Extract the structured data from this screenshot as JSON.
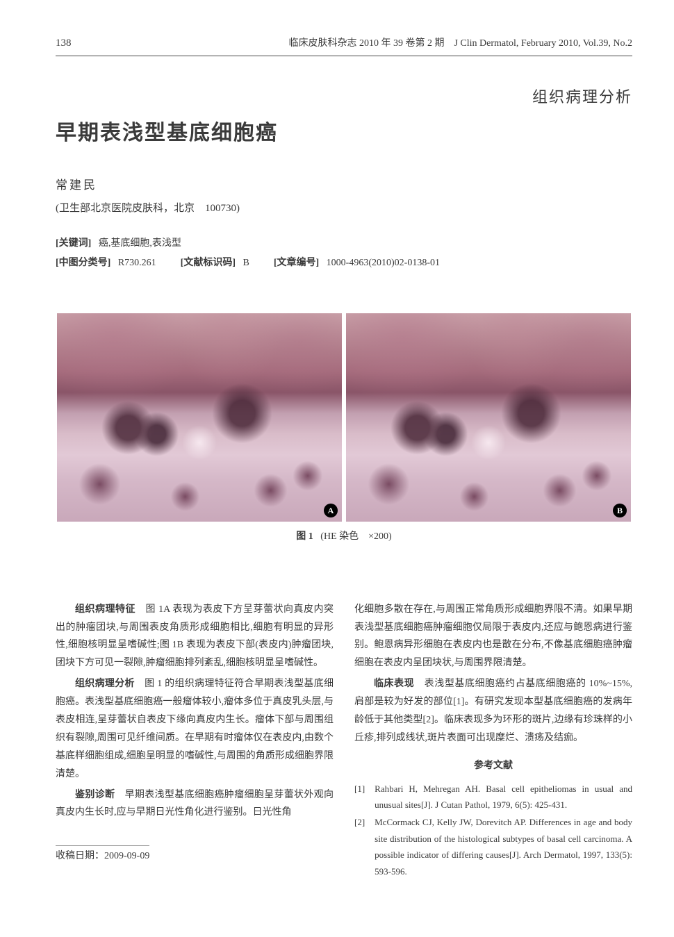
{
  "header": {
    "page_number": "138",
    "journal_cn": "临床皮肤科杂志 2010 年 39 卷第 2 期",
    "journal_en": "J Clin Dermatol, February 2010, Vol.39, No.2"
  },
  "section_label": "组织病理分析",
  "title": "早期表浅型基底细胞癌",
  "author": "常建民",
  "affiliation": "(卫生部北京医院皮肤科，北京　100730)",
  "meta": {
    "keywords_label": "[关键词]",
    "keywords": "癌,基底细胞,表浅型",
    "clc_label": "[中图分类号]",
    "clc": "R730.261",
    "doccode_label": "[文献标识码]",
    "doccode": "B",
    "article_id_label": "[文章编号]",
    "article_id": "1000-4963(2010)02-0138-01"
  },
  "figure": {
    "label": "图 1",
    "caption": "(HE 染色　×200)",
    "badge_a": "A",
    "badge_b": "B"
  },
  "body": {
    "p1_head": "组织病理特征",
    "p1": "　图 1A 表现为表皮下方呈芽蕾状向真皮内突出的肿瘤团块,与周围表皮角质形成细胞相比,细胞有明显的异形性,细胞核明显呈嗜碱性;图 1B 表现为表皮下部(表皮内)肿瘤团块,团块下方可见一裂隙,肿瘤细胞排列紊乱,细胞核明显呈嗜碱性。",
    "p2_head": "组织病理分析",
    "p2": "　图 1 的组织病理特征符合早期表浅型基底细胞癌。表浅型基底细胞癌一般瘤体较小,瘤体多位于真皮乳头层,与表皮相连,呈芽蕾状自表皮下缘向真皮内生长。瘤体下部与周围组织有裂隙,周围可见纤维间质。在早期有时瘤体仅在表皮内,由数个基底样细胞组成,细胞呈明显的嗜碱性,与周围的角质形成细胞界限清楚。",
    "p3_head": "鉴别诊断",
    "p3": "　早期表浅型基底细胞癌肿瘤细胞呈芽蕾状外观向真皮内生长时,应与早期日光性角化进行鉴别。日光性角",
    "p4": "化细胞多散在存在,与周围正常角质形成细胞界限不清。如果早期表浅型基底细胞癌肿瘤细胞仅局限于表皮内,还应与鲍恩病进行鉴别。鲍恩病异形细胞在表皮内也是散在分布,不像基底细胞癌肿瘤细胞在表皮内呈团块状,与周围界限清楚。",
    "p5_head": "临床表现",
    "p5": "　表浅型基底细胞癌约占基底细胞癌的 10%~15%,肩部是较为好发的部位[1]。有研究发现本型基底细胞癌的发病年龄低于其他类型[2]。临床表现多为环形的斑片,边缘有珍珠样的小丘疹,排列成线状,斑片表面可出现糜烂、溃疡及结痂。"
  },
  "references_heading": "参考文献",
  "references": [
    {
      "num": "[1]",
      "text": "Rahbari H, Mehregan AH. Basal cell epitheliomas in usual and unusual sites[J]. J Cutan Pathol, 1979, 6(5): 425-431."
    },
    {
      "num": "[2]",
      "text": "McCormack CJ, Kelly JW, Dorevitch AP. Differences in age and body site distribution of the histological subtypes of basal cell carcinoma. A possible indicator of differing causes[J]. Arch Dermatol, 1997, 133(5): 593-596."
    }
  ],
  "received_label": "收稿日期：",
  "received_date": "2009-09-09"
}
